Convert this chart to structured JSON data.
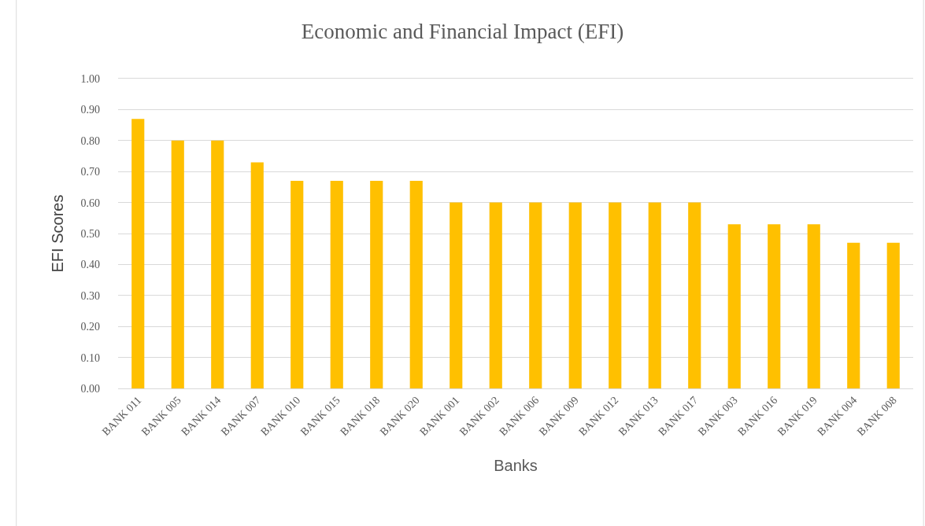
{
  "chart_data": {
    "type": "bar",
    "title": "Economic and Financial Impact (EFI)",
    "xlabel": "Banks",
    "ylabel": "EFI Scores",
    "categories": [
      "BANK 011",
      "BANK 005",
      "BANK 014",
      "BANK 007",
      "BANK 010",
      "BANK 015",
      "BANK 018",
      "BANK 020",
      "BANK 001",
      "BANK 002",
      "BANK 006",
      "BANK 009",
      "BANK 012",
      "BANK 013",
      "BANK 017",
      "BANK 003",
      "BANK 016",
      "BANK 019",
      "BANK 004",
      "BANK 008"
    ],
    "values": [
      0.87,
      0.8,
      0.8,
      0.73,
      0.67,
      0.67,
      0.67,
      0.67,
      0.6,
      0.6,
      0.6,
      0.6,
      0.6,
      0.6,
      0.6,
      0.53,
      0.53,
      0.53,
      0.47,
      0.47
    ],
    "color": "#ffc000",
    "ylim": [
      0,
      1
    ],
    "yticks": [
      {
        "value": 0,
        "label": "0.00"
      },
      {
        "value": 0.1,
        "label": "0.10"
      },
      {
        "value": 0.2,
        "label": "0.20"
      },
      {
        "value": 0.3,
        "label": "0.30"
      },
      {
        "value": 0.4,
        "label": "0.40"
      },
      {
        "value": 0.5,
        "label": "0.50"
      },
      {
        "value": 0.6,
        "label": "0.60"
      },
      {
        "value": 0.7,
        "label": "0.70"
      },
      {
        "value": 0.8,
        "label": "0.80"
      },
      {
        "value": 0.9,
        "label": "0.90"
      },
      {
        "value": 1,
        "label": "1.00"
      }
    ],
    "grid": "y"
  }
}
